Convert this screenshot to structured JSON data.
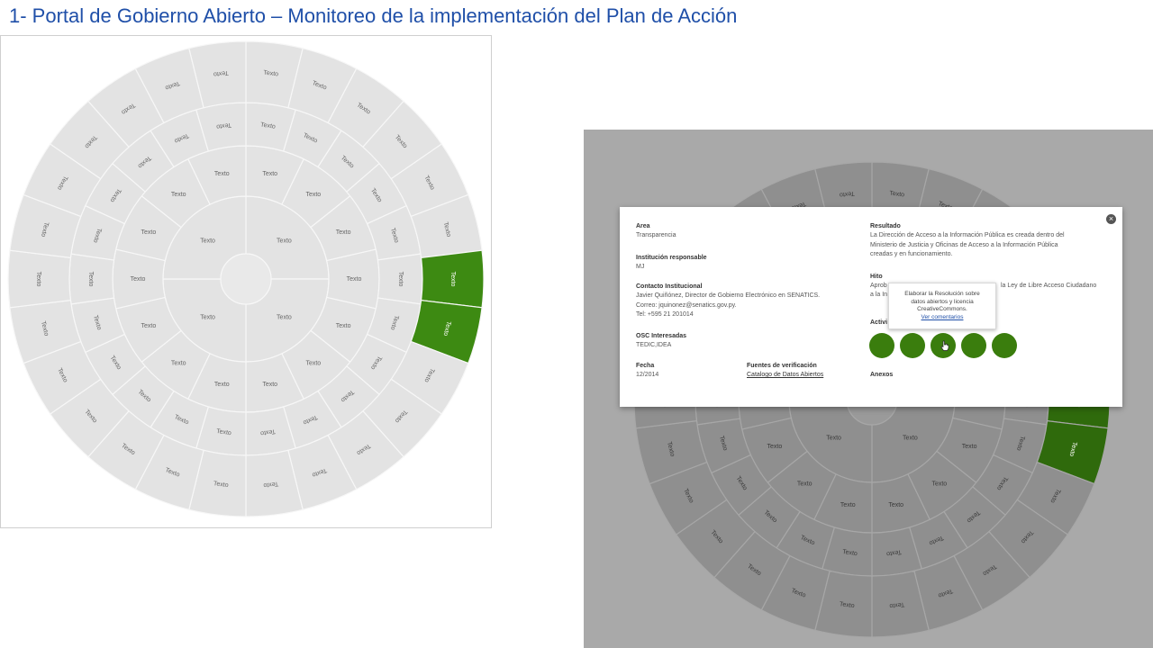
{
  "page_title": "1- Portal de Gobierno Abierto – Monitoreo de la implementación del Plan de Acción",
  "segment_label": "Texto",
  "colors": {
    "title": "#1f4fa8",
    "highlight": "#3d8a12",
    "highlight_dark": "#2f6a0c",
    "segment": "#e3e3e3",
    "segment_dark": "#8f8f8f",
    "circle_green": "#3a7d0d"
  },
  "popup": {
    "area_label": "Area",
    "area_value": "Transparencia",
    "institution_label": "Institución responsable",
    "institution_value": "MJ",
    "contact_label": "Contacto Institucional",
    "contact_lines": [
      "Javier Quiñónez, Director de Gobierno Electrónico en SENATICS.",
      "Correo: jquinonez@senatics.gov.py.",
      "Tel: +595 21 201014"
    ],
    "osc_label": "OSC Interesadas",
    "osc_value": "TEDIC,IDEA",
    "date_label": "Fecha",
    "date_value": "12/2014",
    "sources_label": "Fuentes de verificación",
    "sources_link": "Catalogo de Datos Abiertos",
    "result_label": "Resultado",
    "result_lines": [
      "La Dirección de Acceso a la Información Pública es creada dentro del",
      "Ministerio de Justicia y Oficinas de Acceso a la Información Pública",
      "creadas y en funcionamiento."
    ],
    "milestone_label": "Hito",
    "milestone_line1_start": "Aprob",
    "milestone_line1_end": "la Ley de Libre Acceso Ciudadano",
    "milestone_line2_start": "a la In",
    "activities_label_partial": "Activi",
    "annexes_label": "Anexos",
    "close_symbol": "×",
    "tooltip_lines": [
      "Elaborar la Resolución sobre",
      "datos abiertos y licencia",
      "CreativeCommons."
    ],
    "tooltip_link": "Ver comentarios"
  }
}
